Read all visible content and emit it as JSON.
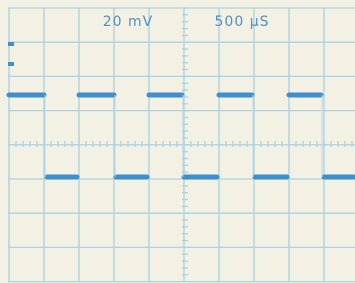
{
  "labels": {
    "volts_per_div": "20 mV",
    "time_per_div": "500 µS"
  }
}
